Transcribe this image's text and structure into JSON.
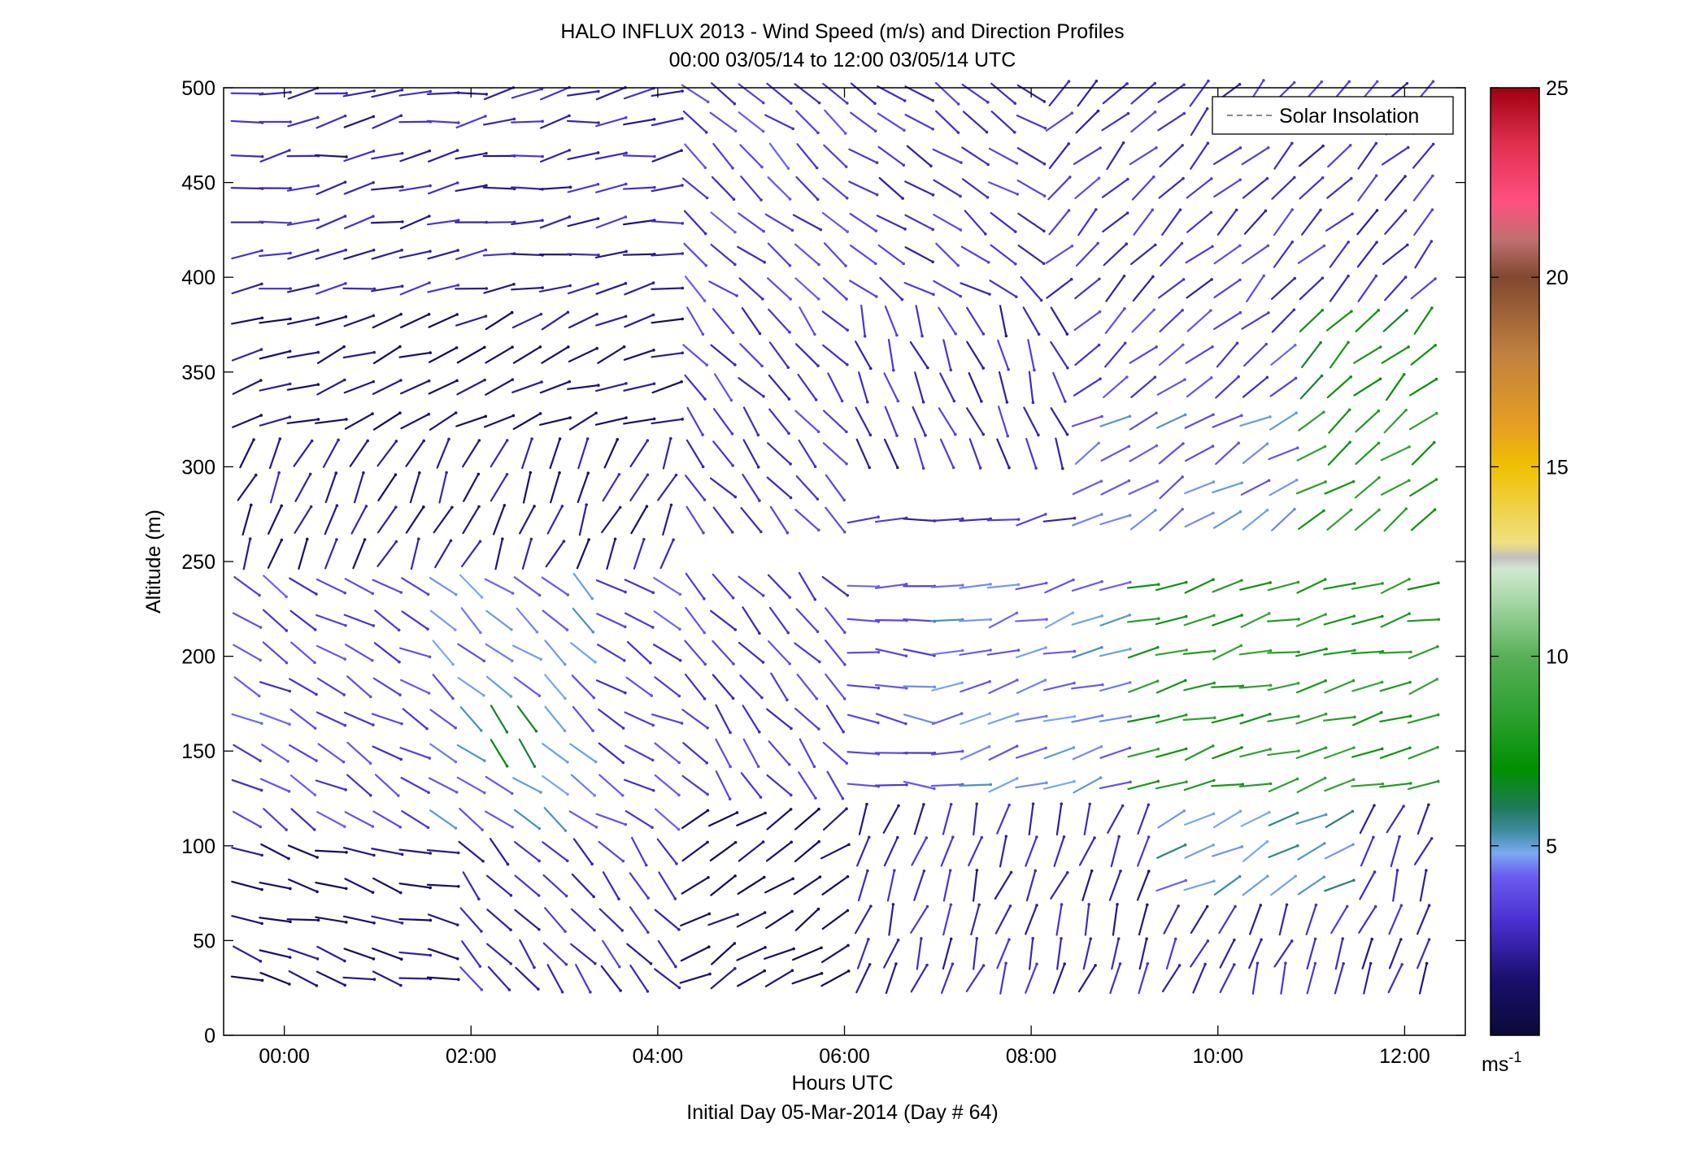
{
  "chart_data": {
    "type": "quiver",
    "title": "HALO INFLUX 2013 - Wind Speed (m/s) and Direction Profiles",
    "subtitle": "00:00 03/05/14 to 12:00 03/05/14  UTC",
    "xlabel": "Hours UTC",
    "xlabel_sub": "Initial Day 05-Mar-2014 (Day # 64)",
    "ylabel": "Altitude (m)",
    "xlim_hours": [
      -0.65,
      12.65
    ],
    "ylim": [
      0,
      500
    ],
    "x_ticks": [
      {
        "value": 0,
        "label": "00:00"
      },
      {
        "value": 2,
        "label": "02:00"
      },
      {
        "value": 4,
        "label": "04:00"
      },
      {
        "value": 6,
        "label": "06:00"
      },
      {
        "value": 8,
        "label": "08:00"
      },
      {
        "value": 10,
        "label": "10:00"
      },
      {
        "value": 12,
        "label": "12:00"
      }
    ],
    "y_ticks": [
      {
        "value": 0,
        "label": "0"
      },
      {
        "value": 50,
        "label": "50"
      },
      {
        "value": 100,
        "label": "100"
      },
      {
        "value": 150,
        "label": "150"
      },
      {
        "value": 200,
        "label": "200"
      },
      {
        "value": 250,
        "label": "250"
      },
      {
        "value": 300,
        "label": "300"
      },
      {
        "value": 350,
        "label": "350"
      },
      {
        "value": 400,
        "label": "400"
      },
      {
        "value": 450,
        "label": "450"
      },
      {
        "value": 500,
        "label": "500"
      }
    ],
    "legend": {
      "label": "Solar Insolation",
      "position": "top-right",
      "style": "dashed",
      "color": "#888888"
    },
    "colorbar": {
      "range": [
        0,
        25
      ],
      "ticks": [
        {
          "value": 5,
          "label": "5"
        },
        {
          "value": 10,
          "label": "10"
        },
        {
          "value": 15,
          "label": "15"
        },
        {
          "value": 20,
          "label": "20"
        },
        {
          "value": 25,
          "label": "25"
        }
      ],
      "unit_base": "ms",
      "unit_exp": "-1",
      "stops": [
        {
          "v": 0,
          "c": "#0a0a3a"
        },
        {
          "v": 1.5,
          "c": "#1a0f6e"
        },
        {
          "v": 3,
          "c": "#4a2fd0"
        },
        {
          "v": 4.2,
          "c": "#6b5cf0"
        },
        {
          "v": 4.8,
          "c": "#7aaaf0"
        },
        {
          "v": 5.4,
          "c": "#3d8c9e"
        },
        {
          "v": 6,
          "c": "#1f7a5a"
        },
        {
          "v": 7,
          "c": "#009000"
        },
        {
          "v": 8.5,
          "c": "#2ea032"
        },
        {
          "v": 10,
          "c": "#58b058"
        },
        {
          "v": 11.5,
          "c": "#a8d8a8"
        },
        {
          "v": 12.3,
          "c": "#d0e8d0"
        },
        {
          "v": 12.6,
          "c": "#c0c0c0"
        },
        {
          "v": 13,
          "c": "#f0e080"
        },
        {
          "v": 15,
          "c": "#f0c000"
        },
        {
          "v": 16,
          "c": "#e8a020"
        },
        {
          "v": 18,
          "c": "#c08040"
        },
        {
          "v": 20,
          "c": "#804830"
        },
        {
          "v": 21,
          "c": "#c07070"
        },
        {
          "v": 22,
          "c": "#ff5080"
        },
        {
          "v": 23.5,
          "c": "#e03050"
        },
        {
          "v": 25,
          "c": "#a00010"
        }
      ]
    },
    "hours": [
      -0.4,
      -0.1,
      0.2,
      0.5,
      0.8,
      1.1,
      1.4,
      1.7,
      2.0,
      2.3,
      2.6,
      2.9,
      3.2,
      3.5,
      3.8,
      4.1,
      4.4,
      4.7,
      5.0,
      5.3,
      5.6,
      5.9,
      6.2,
      6.5,
      6.8,
      7.1,
      7.4,
      7.7,
      8.0,
      8.3,
      8.6,
      8.9,
      9.2,
      9.5,
      9.8,
      10.1,
      10.4,
      10.7,
      11.0,
      11.3,
      11.6,
      11.9,
      12.2
    ],
    "wind_regions": [
      {
        "t": [
          -0.5,
          4.3
        ],
        "z": [
          380,
          505
        ],
        "dir": 260,
        "spd": 2.5
      },
      {
        "t": [
          -0.5,
          4.3
        ],
        "z": [
          310,
          380
        ],
        "dir": 250,
        "spd": 1.5
      },
      {
        "t": [
          -0.5,
          4.3
        ],
        "z": [
          240,
          310
        ],
        "dir": 205,
        "spd": 2.0
      },
      {
        "t": [
          -0.5,
          4.3
        ],
        "z": [
          110,
          240
        ],
        "dir": 300,
        "spd": 3.5
      },
      {
        "t": [
          1.5,
          3.3
        ],
        "z": [
          110,
          240
        ],
        "dir": 310,
        "spd": 4.5
      },
      {
        "t": [
          2.2,
          2.7
        ],
        "z": [
          140,
          175
        ],
        "dir": 320,
        "spd": 6.2
      },
      {
        "t": [
          -0.5,
          1.8
        ],
        "z": [
          20,
          110
        ],
        "dir": 285,
        "spd": 1.5
      },
      {
        "t": [
          1.8,
          4.3
        ],
        "z": [
          20,
          110
        ],
        "dir": 320,
        "spd": 2.8
      },
      {
        "t": [
          4.3,
          6.0
        ],
        "z": [
          390,
          505
        ],
        "dir": 310,
        "spd": 3.5
      },
      {
        "t": [
          4.3,
          6.0
        ],
        "z": [
          120,
          390
        ],
        "dir": 320,
        "spd": 3.2
      },
      {
        "t": [
          4.3,
          6.0
        ],
        "z": [
          20,
          120
        ],
        "dir": 240,
        "spd": 1.3
      },
      {
        "t": [
          6.0,
          8.3
        ],
        "z": [
          390,
          505
        ],
        "dir": 305,
        "spd": 3.0
      },
      {
        "t": [
          6.0,
          8.5
        ],
        "z": [
          290,
          390
        ],
        "dir": 340,
        "spd": 2.8
      },
      {
        "t": [
          6.0,
          7.0
        ],
        "z": [
          120,
          240
        ],
        "dir": 275,
        "spd": 3.8
      },
      {
        "t": [
          7.0,
          9.0
        ],
        "z": [
          120,
          240
        ],
        "dir": 255,
        "spd": 4.5
      },
      {
        "t": [
          9.0,
          12.5
        ],
        "z": [
          120,
          240
        ],
        "dir": 255,
        "spd": 8.0
      },
      {
        "t": [
          6.0,
          9.0
        ],
        "z": [
          240,
          285
        ],
        "dir": 260,
        "spd": 3.0
      },
      {
        "t": [
          8.5,
          12.5
        ],
        "z": [
          250,
          330
        ],
        "dir": 240,
        "spd": 4.5
      },
      {
        "t": [
          11.0,
          12.5
        ],
        "z": [
          250,
          330
        ],
        "dir": 235,
        "spd": 8.0
      },
      {
        "t": [
          8.5,
          12.5
        ],
        "z": [
          330,
          390
        ],
        "dir": 230,
        "spd": 3.5
      },
      {
        "t": [
          11.0,
          12.5
        ],
        "z": [
          330,
          390
        ],
        "dir": 225,
        "spd": 7.0
      },
      {
        "t": [
          8.3,
          12.5
        ],
        "z": [
          390,
          505
        ],
        "dir": 225,
        "spd": 3.0
      },
      {
        "t": [
          6.0,
          12.5
        ],
        "z": [
          20,
          120
        ],
        "dir": 200,
        "spd": 2.5
      },
      {
        "t": [
          9.5,
          11.5
        ],
        "z": [
          70,
          120
        ],
        "dir": 240,
        "spd": 5.0
      }
    ],
    "gaps": [
      {
        "t": [
          4.3,
          12.5
        ],
        "z": [
          240,
          262
        ]
      },
      {
        "t": [
          4.3,
          6.0
        ],
        "z": [
          240,
          265
        ]
      }
    ],
    "altitudes": [
      30,
      43,
      61,
      79,
      97,
      114,
      132,
      149,
      167,
      184,
      202,
      219,
      237,
      254,
      272,
      289,
      307,
      324,
      342,
      359,
      377,
      394,
      412,
      429,
      447,
      464,
      482,
      497
    ],
    "rows_alt_levels_note": ""
  }
}
